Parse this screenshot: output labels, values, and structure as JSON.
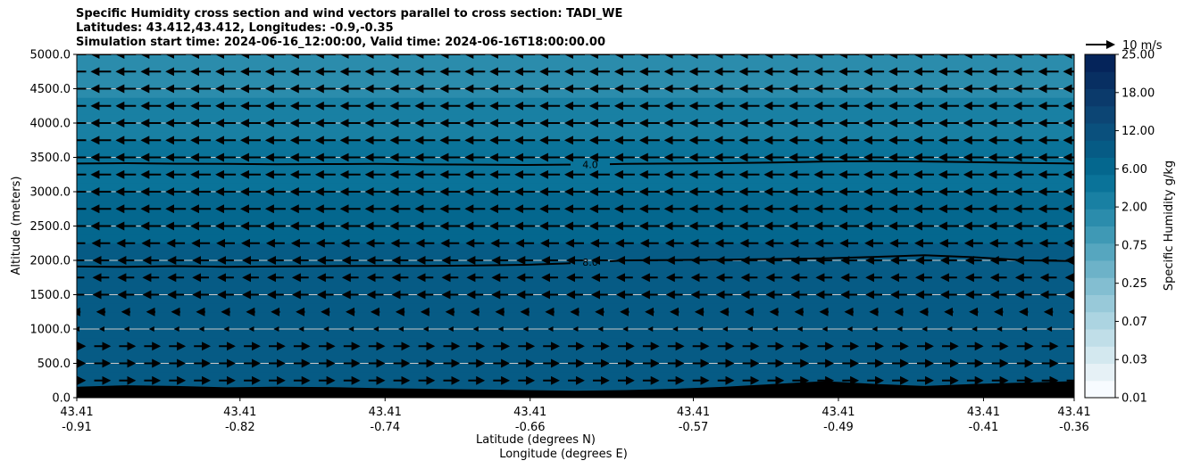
{
  "title": {
    "line1": "Specific Humidity cross section and wind vectors parallel to cross section: TADI_WE",
    "line2": "Latitudes: 43.412,43.412, Longitudes: -0.9,-0.35",
    "line3": "Simulation start time: 2024-06-16_12:00:00, Valid time: 2024-06-16T18:00:00.00"
  },
  "chart_data": {
    "type": "heatmap",
    "subtype": "filled-contour cross section with quiver",
    "ylabel": "Altitude (meters)",
    "xlabel_line1": "Latitude (degrees N)",
    "xlabel_line2": "Longitude (degrees E)",
    "ylim": [
      0,
      5000
    ],
    "yticks": [
      "0.0",
      "500.0",
      "1000.0",
      "1500.0",
      "2000.0",
      "2500.0",
      "3000.0",
      "3500.0",
      "4000.0",
      "4500.0",
      "5000.0"
    ],
    "ytick_values": [
      0,
      500,
      1000,
      1500,
      2000,
      2500,
      3000,
      3500,
      4000,
      4500,
      5000
    ],
    "xticks": [
      {
        "lat": "43.41",
        "lon": "-0.91"
      },
      {
        "lat": "43.41",
        "lon": "-0.82"
      },
      {
        "lat": "43.41",
        "lon": "-0.74"
      },
      {
        "lat": "43.41",
        "lon": "-0.66"
      },
      {
        "lat": "43.41",
        "lon": "-0.57"
      },
      {
        "lat": "43.41",
        "lon": "-0.49"
      },
      {
        "lat": "43.41",
        "lon": "-0.41"
      },
      {
        "lat": "43.41",
        "lon": "-0.36"
      }
    ],
    "xtick_lon_values": [
      -0.91,
      -0.82,
      -0.74,
      -0.66,
      -0.57,
      -0.49,
      -0.41,
      -0.36
    ],
    "xlim_lon": [
      -0.91,
      -0.36
    ],
    "grid": "horizontal",
    "colorbar": {
      "label": "Specific Humidity g/kg",
      "tick_labels": [
        "0.01",
        "0.03",
        "0.07",
        "0.25",
        "0.75",
        "2.00",
        "6.00",
        "12.00",
        "18.00",
        "25.00"
      ],
      "levels": 20,
      "colors": [
        "#f7fbff",
        "#e6f1f6",
        "#d3e8ef",
        "#c0dee8",
        "#acd4e1",
        "#98c9d9",
        "#83bed1",
        "#6db2c8",
        "#56a6bf",
        "#3f99b5",
        "#2b8cac",
        "#1980a3",
        "#0a7399",
        "#04678e",
        "#065b85",
        "#0a507d",
        "#0c4574",
        "#0b3a6b",
        "#082f62",
        "#05245a"
      ]
    },
    "contours": [
      {
        "label": "4.0",
        "level": 4.0,
        "altitudes": [
          3410,
          3415,
          3408,
          3405,
          3400,
          3402,
          3405,
          3398,
          3395,
          3390,
          3395,
          3405,
          3410,
          3415,
          3425,
          3440,
          3445,
          3440,
          3430,
          3420,
          3410
        ]
      },
      {
        "label": "8.0",
        "level": 8.0,
        "altitudes": [
          1910,
          1905,
          1915,
          1905,
          1910,
          1915,
          1920,
          1920,
          1925,
          1935,
          1960,
          2000,
          2005,
          2010,
          2020,
          2030,
          2050,
          2075,
          2045,
          2000,
          1990
        ]
      }
    ],
    "terrain_altitudes": [
      160,
      180,
      170,
      150,
      160,
      155,
      140,
      130,
      120,
      110,
      100,
      110,
      130,
      160,
      200,
      240,
      200,
      170,
      200,
      220,
      240
    ],
    "quiver_key": {
      "label": "10 m/s",
      "speed": 10
    },
    "wind_levels": [
      250,
      500,
      750,
      1000,
      1250,
      1500,
      1750,
      2000,
      2250,
      2500,
      2750,
      3000,
      3250,
      3500,
      3750,
      4000,
      4250,
      4500,
      4750,
      5000
    ],
    "wind_u": [
      8,
      8,
      8,
      0,
      -4,
      -8,
      -8,
      -8,
      -9,
      -10,
      -10,
      -10,
      -10,
      -10,
      -10,
      -10,
      -10,
      -10,
      -10,
      -10
    ],
    "wind_columns": 41,
    "humidity_field": [
      {
        "alt": 0,
        "value": 9.5
      },
      {
        "alt": 500,
        "value": 9.3
      },
      {
        "alt": 1000,
        "value": 9.0
      },
      {
        "alt": 1500,
        "value": 8.7
      },
      {
        "alt": 2000,
        "value": 8.0
      },
      {
        "alt": 2500,
        "value": 6.8
      },
      {
        "alt": 3000,
        "value": 5.2
      },
      {
        "alt": 3500,
        "value": 3.8
      },
      {
        "alt": 4000,
        "value": 2.4
      },
      {
        "alt": 4500,
        "value": 1.8
      },
      {
        "alt": 5000,
        "value": 1.5
      }
    ]
  }
}
